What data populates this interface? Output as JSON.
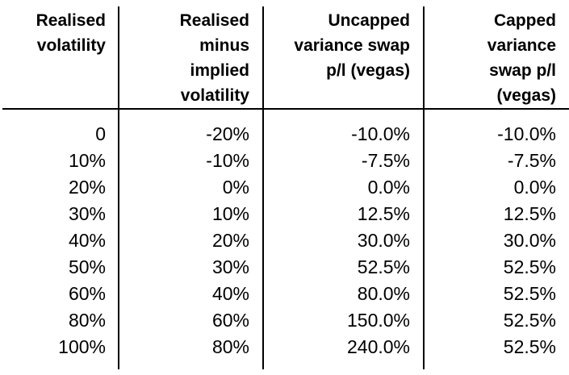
{
  "table": {
    "headers": [
      [
        "Realised",
        "volatility"
      ],
      [
        "Realised",
        "minus",
        "implied",
        "volatility"
      ],
      [
        "Uncapped",
        "variance swap",
        "p/l (vegas)"
      ],
      [
        "Capped",
        "variance",
        "swap p/l",
        "(vegas)"
      ]
    ],
    "rows": [
      [
        "0",
        "-20%",
        "-10.0%",
        "-10.0%"
      ],
      [
        "10%",
        "-10%",
        "-7.5%",
        "-7.5%"
      ],
      [
        "20%",
        "0%",
        "0.0%",
        "0.0%"
      ],
      [
        "30%",
        "10%",
        "12.5%",
        "12.5%"
      ],
      [
        "40%",
        "20%",
        "30.0%",
        "30.0%"
      ],
      [
        "50%",
        "30%",
        "52.5%",
        "52.5%"
      ],
      [
        "60%",
        "40%",
        "80.0%",
        "52.5%"
      ],
      [
        "80%",
        "60%",
        "150.0%",
        "52.5%"
      ],
      [
        "100%",
        "80%",
        "240.0%",
        "52.5%"
      ]
    ]
  }
}
